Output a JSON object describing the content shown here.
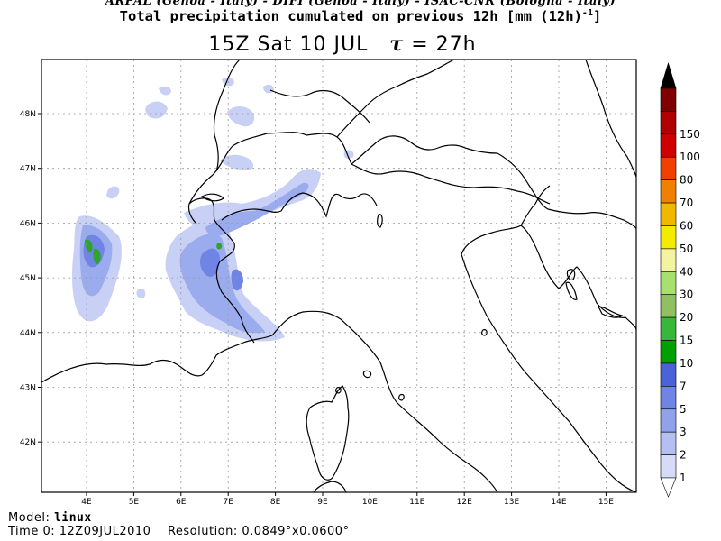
{
  "header": {
    "credits": "ARPAL (Genoa - Italy)  -  DIFI (Genoa - Italy)  -  ISAC-CNR (Bologna - Italy)",
    "title_main": "Total precipitation cumulated on previous 12h [mm (12h)",
    "title_sup": "-1",
    "title_end": "]",
    "time_label": "15Z Sat 10 JUL",
    "tau_symbol": "τ",
    "tau_value": "= 27h"
  },
  "map": {
    "lon_labels": [
      "4E",
      "5E",
      "6E",
      "7E",
      "8E",
      "9E",
      "10E",
      "11E",
      "12E",
      "13E",
      "14E",
      "15E"
    ],
    "lat_labels": [
      "48N",
      "47N",
      "46N",
      "45N",
      "44N",
      "43N",
      "42N"
    ]
  },
  "legend": {
    "levels": [
      "1",
      "2",
      "3",
      "5",
      "7",
      "10",
      "15",
      "20",
      "30",
      "40",
      "50",
      "60",
      "70",
      "80",
      "100",
      "150"
    ],
    "colors": [
      "#ffffff",
      "#d6dcf8",
      "#b4c0f2",
      "#90a2ec",
      "#6f84e4",
      "#4c62d8",
      "#00a000",
      "#38b838",
      "#90c060",
      "#a8e070",
      "#f4f4a0",
      "#f4ec00",
      "#f0b800",
      "#f08000",
      "#f04000",
      "#d00000",
      "#b00000",
      "#800000",
      "#000000"
    ]
  },
  "footer": {
    "model_label": "Model:",
    "model_value": "linux",
    "time0_label": "Time 0:",
    "time0_value": "12Z09JUL2010",
    "resolution_label": "Resolution:",
    "resolution_value": "0.0849°x0.0600°"
  }
}
